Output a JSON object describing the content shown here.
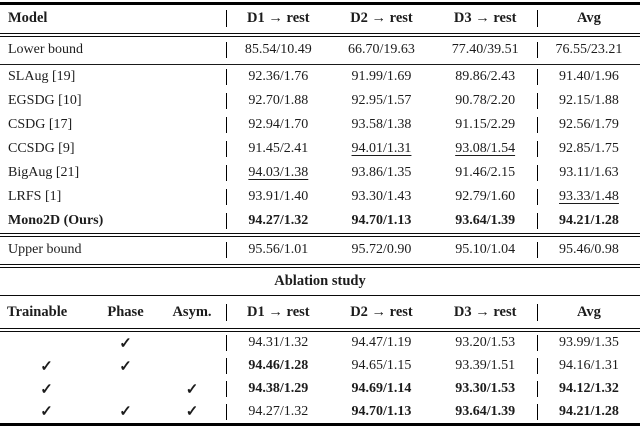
{
  "main_table": {
    "header": {
      "model": "Model",
      "d_cols": [
        "D1 → rest",
        "D2 → rest",
        "D3 → rest"
      ],
      "avg": "Avg"
    },
    "lower_bound": {
      "name": "Lower bound",
      "cells": [
        {
          "t": "85.54/10.49"
        },
        {
          "t": "66.70/19.63"
        },
        {
          "t": "77.40/39.51"
        },
        {
          "t": "76.55/23.21"
        }
      ]
    },
    "rows": [
      {
        "name": "SLAug [19]",
        "cells": [
          {
            "t": "92.36/1.76"
          },
          {
            "t": "91.99/1.69"
          },
          {
            "t": "89.86/2.43"
          },
          {
            "t": "91.40/1.96"
          }
        ]
      },
      {
        "name": "EGSDG [10]",
        "cells": [
          {
            "t": "92.70/1.88"
          },
          {
            "t": "92.95/1.57"
          },
          {
            "t": "90.78/2.20"
          },
          {
            "t": "92.15/1.88"
          }
        ]
      },
      {
        "name": "CSDG [17]",
        "cells": [
          {
            "t": "92.94/1.70"
          },
          {
            "t": "93.58/1.38"
          },
          {
            "t": "91.15/2.29"
          },
          {
            "t": "92.56/1.79"
          }
        ]
      },
      {
        "name": "CCSDG [9]",
        "cells": [
          {
            "t": "91.45/2.41"
          },
          {
            "t": "94.01/1.31",
            "u": true
          },
          {
            "t": "93.08/1.54",
            "u": true
          },
          {
            "t": "92.85/1.75"
          }
        ]
      },
      {
        "name": "BigAug [21]",
        "cells": [
          {
            "t": "94.03/1.38",
            "u": true
          },
          {
            "t": "93.86/1.35"
          },
          {
            "t": "91.46/2.15"
          },
          {
            "t": "93.11/1.63"
          }
        ]
      },
      {
        "name": "LRFS [1]",
        "cells": [
          {
            "t": "93.91/1.40"
          },
          {
            "t": "93.30/1.43"
          },
          {
            "t": "92.79/1.60"
          },
          {
            "t": "93.33/1.48",
            "u": true
          }
        ]
      },
      {
        "name": "Mono2D (Ours)",
        "bold_name": true,
        "cells": [
          {
            "t": "94.27/1.32",
            "b": true
          },
          {
            "t": "94.70/1.13",
            "b": true
          },
          {
            "t": "93.64/1.39",
            "b": true
          },
          {
            "t": "94.21/1.28",
            "b": true
          }
        ]
      }
    ],
    "upper_bound": {
      "name": "Upper bound",
      "cells": [
        {
          "t": "95.56/1.01"
        },
        {
          "t": "95.72/0.90"
        },
        {
          "t": "95.10/1.04"
        },
        {
          "t": "95.46/0.98"
        }
      ]
    }
  },
  "ablation": {
    "title": "Ablation study",
    "header": {
      "factors": [
        "Trainable",
        "Phase",
        "Asym."
      ],
      "d_cols": [
        "D1 → rest",
        "D2 → rest",
        "D3 → rest"
      ],
      "avg": "Avg"
    },
    "rows": [
      {
        "checks": [
          "",
          "✓",
          ""
        ],
        "cells": [
          {
            "t": "94.31/1.32"
          },
          {
            "t": "94.47/1.19"
          },
          {
            "t": "93.20/1.53"
          },
          {
            "t": "93.99/1.35"
          }
        ]
      },
      {
        "checks": [
          "✓",
          "✓",
          ""
        ],
        "cells": [
          {
            "t": "94.46/1.28",
            "b": true
          },
          {
            "t": "94.65/1.15"
          },
          {
            "t": "93.39/1.51"
          },
          {
            "t": "94.16/1.31"
          }
        ]
      },
      {
        "checks": [
          "✓",
          "",
          "✓"
        ],
        "cells": [
          {
            "t": "94.38/1.29",
            "b": true
          },
          {
            "t": "94.69/1.14",
            "b": true
          },
          {
            "t": "93.30/1.53",
            "b": true
          },
          {
            "t": "94.12/1.32",
            "b": true
          }
        ]
      },
      {
        "checks": [
          "✓",
          "✓",
          "✓"
        ],
        "cells": [
          {
            "t": "94.27/1.32"
          },
          {
            "t": "94.70/1.13",
            "b": true
          },
          {
            "t": "93.64/1.39",
            "b": true
          },
          {
            "t": "94.21/1.28",
            "b": true
          }
        ]
      }
    ]
  }
}
